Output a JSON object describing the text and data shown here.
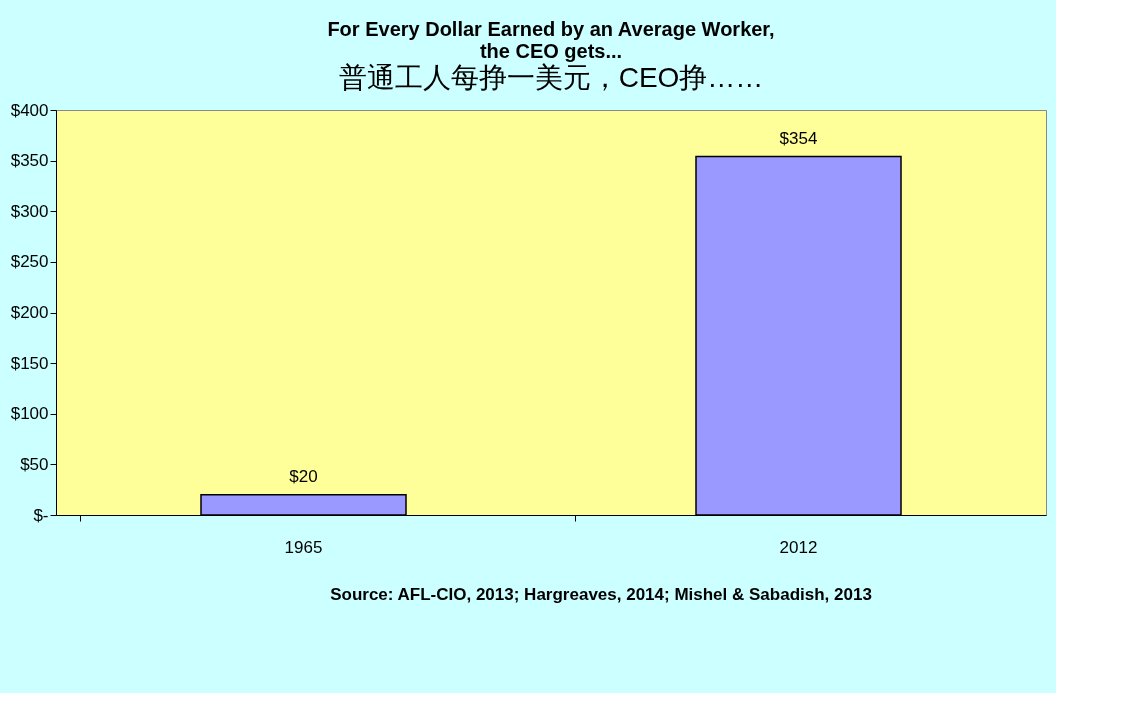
{
  "chart_data": {
    "type": "bar",
    "title": "For Every Dollar Earned by an Average Worker,\nthe CEO gets...",
    "subtitle": "普通工人每挣一美元，CEO挣……",
    "categories": [
      "1965",
      "2012"
    ],
    "values": [
      20,
      354
    ],
    "color": "#9999ff",
    "value_labels": [
      "$20",
      "$354"
    ],
    "ylim": [
      0,
      400
    ],
    "yticks": [
      {
        "value": 0,
        "label": "$-"
      },
      {
        "value": 50,
        "label": "$50"
      },
      {
        "value": 100,
        "label": "$100"
      },
      {
        "value": 150,
        "label": "$150"
      },
      {
        "value": 200,
        "label": "$200"
      },
      {
        "value": 250,
        "label": "$250"
      },
      {
        "value": 300,
        "label": "$300"
      },
      {
        "value": 350,
        "label": "$350"
      },
      {
        "value": 400,
        "label": "$400"
      }
    ],
    "grid": false,
    "annotations": [
      "Source: AFL-CIO, 2013; Hargreaves, 2014; Mishel & Sabadish, 2013"
    ]
  }
}
